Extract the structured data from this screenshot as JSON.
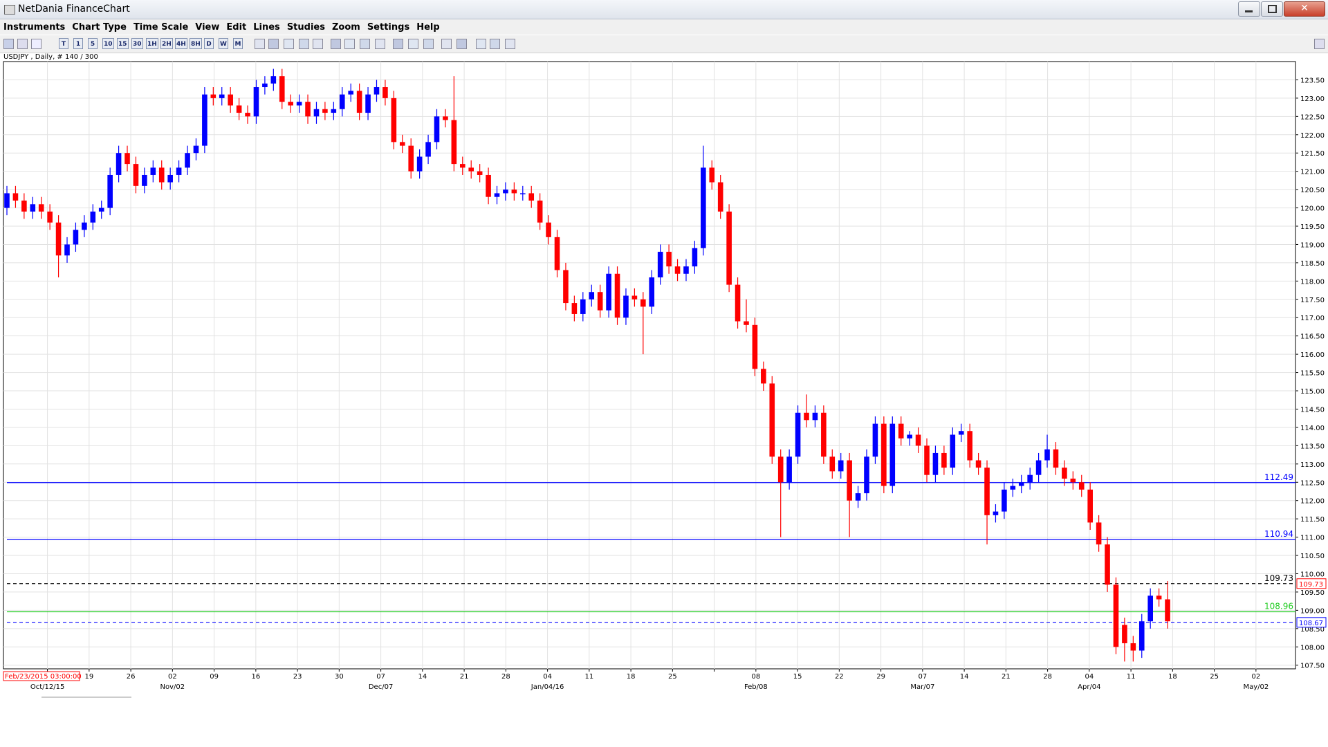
{
  "window": {
    "title": "NetDania FinanceChart"
  },
  "menu": [
    "Instruments",
    "Chart Type",
    "Time Scale",
    "View",
    "Edit",
    "Lines",
    "Studies",
    "Zoom",
    "Settings",
    "Help"
  ],
  "toolbar": [
    "T",
    "1",
    "5",
    "10",
    "15",
    "30",
    "1H",
    "2H",
    "4H",
    "8H",
    "D",
    "W",
    "M"
  ],
  "chart_data": {
    "type": "candlestick",
    "title": "USDJPY , Daily, # 140 / 300",
    "cursor_label": "Feb/23/2015 03:00:00",
    "categories": [
      null,
      "19",
      "26",
      "02",
      "09",
      "16",
      "23",
      "30",
      "07",
      "14",
      "21",
      "28",
      "04",
      "11",
      "18",
      "25",
      null,
      "08",
      "15",
      "22",
      "29",
      "07",
      "14",
      "21",
      "28",
      "04",
      "11",
      "18",
      "25",
      "02"
    ],
    "category_dates": [
      "Oct/12/15",
      null,
      null,
      "Nov/02",
      null,
      null,
      null,
      null,
      "Dec/07",
      null,
      null,
      null,
      "Jan/04/16",
      null,
      null,
      null,
      null,
      "Feb/08",
      null,
      null,
      null,
      "Mar/07",
      null,
      null,
      null,
      "Apr/04",
      null,
      null,
      null,
      "May/02"
    ],
    "up_color": "#0000ff",
    "down_color": "#ff0000",
    "grid": true,
    "open": [
      120.0,
      120.4,
      120.2,
      119.9,
      120.1,
      119.9,
      119.6,
      118.7,
      119.0,
      119.4,
      119.6,
      119.9,
      120.0,
      120.9,
      121.5,
      121.2,
      120.6,
      120.9,
      121.1,
      120.7,
      120.9,
      121.1,
      121.5,
      121.7,
      123.1,
      123.0,
      123.1,
      122.8,
      122.6,
      122.5,
      123.3,
      123.4,
      123.6,
      122.9,
      122.8,
      122.9,
      122.5,
      122.7,
      122.6,
      122.7,
      123.1,
      123.2,
      122.6,
      123.1,
      123.3,
      123.0,
      121.8,
      121.7,
      121.0,
      121.4,
      121.8,
      122.5,
      122.4,
      121.2,
      121.1,
      121.0,
      120.9,
      120.3,
      120.4,
      120.5,
      120.4,
      120.4,
      120.2,
      119.6,
      119.2,
      118.3,
      117.4,
      117.1,
      117.5,
      117.7,
      117.2,
      118.2,
      117.0,
      117.6,
      117.5,
      117.3,
      118.1,
      118.8,
      118.4,
      118.2,
      118.4,
      118.9,
      121.1,
      120.7,
      119.9,
      117.9,
      116.9,
      116.8,
      115.6,
      115.2,
      113.2,
      112.5,
      113.2,
      114.4,
      114.2,
      114.4,
      113.2,
      112.8,
      113.1,
      112.0,
      112.2,
      113.2,
      114.1,
      112.4,
      114.1,
      113.7,
      113.8,
      113.5,
      112.7,
      113.3,
      112.9,
      113.8,
      113.9,
      113.1,
      112.9,
      111.6,
      111.7,
      112.3,
      112.4,
      112.5,
      112.7,
      113.1,
      113.4,
      112.9,
      112.6,
      112.5,
      112.3,
      111.4,
      110.8,
      109.7,
      108.6,
      108.1,
      107.9,
      108.7,
      109.4,
      109.3
    ],
    "high": [
      120.6,
      120.6,
      120.4,
      120.3,
      120.3,
      120.1,
      119.8,
      119.2,
      119.6,
      119.8,
      120.1,
      120.2,
      121.1,
      121.7,
      121.7,
      121.4,
      121.1,
      121.3,
      121.3,
      121.1,
      121.3,
      121.7,
      121.9,
      123.3,
      123.3,
      123.3,
      123.3,
      123.0,
      122.8,
      123.5,
      123.6,
      123.8,
      123.8,
      123.1,
      123.1,
      123.1,
      122.9,
      122.9,
      122.9,
      123.3,
      123.4,
      123.4,
      123.3,
      123.5,
      123.5,
      123.2,
      122.0,
      121.9,
      121.6,
      122.0,
      122.7,
      122.7,
      123.6,
      121.4,
      121.3,
      121.2,
      121.1,
      120.6,
      120.7,
      120.7,
      120.6,
      120.6,
      120.4,
      119.8,
      119.4,
      118.5,
      117.6,
      117.7,
      117.9,
      117.9,
      118.4,
      118.4,
      117.8,
      117.8,
      117.7,
      118.3,
      119.0,
      119.0,
      118.6,
      118.6,
      119.1,
      121.7,
      121.3,
      120.9,
      120.1,
      118.1,
      117.5,
      117.0,
      115.8,
      115.4,
      113.4,
      113.4,
      114.6,
      114.9,
      114.6,
      114.6,
      113.4,
      113.3,
      113.3,
      112.4,
      113.4,
      114.3,
      114.3,
      114.3,
      114.3,
      113.9,
      114.0,
      113.7,
      113.5,
      113.5,
      114.0,
      114.1,
      114.1,
      113.3,
      113.1,
      111.9,
      112.5,
      112.6,
      112.7,
      112.9,
      113.3,
      113.8,
      113.6,
      113.1,
      112.8,
      112.7,
      112.5,
      111.6,
      111.0,
      109.9,
      108.8,
      108.3,
      108.9,
      109.6,
      109.6,
      109.8
    ],
    "low": [
      119.8,
      120.0,
      119.7,
      119.7,
      119.7,
      119.4,
      118.1,
      118.5,
      118.8,
      119.2,
      119.4,
      119.7,
      119.8,
      120.7,
      121.0,
      120.4,
      120.4,
      120.7,
      120.5,
      120.5,
      120.7,
      120.9,
      121.3,
      121.5,
      122.8,
      122.8,
      122.6,
      122.4,
      122.3,
      122.3,
      123.1,
      123.2,
      122.7,
      122.6,
      122.6,
      122.3,
      122.3,
      122.4,
      122.4,
      122.5,
      122.9,
      122.4,
      122.4,
      122.9,
      122.8,
      121.6,
      121.5,
      120.8,
      120.8,
      121.2,
      121.6,
      122.2,
      121.0,
      120.9,
      120.8,
      120.7,
      120.1,
      120.1,
      120.2,
      120.2,
      120.2,
      120.0,
      119.4,
      119.0,
      118.1,
      117.2,
      116.9,
      116.9,
      117.3,
      117.0,
      117.0,
      116.8,
      116.8,
      117.3,
      116.0,
      117.1,
      117.9,
      118.2,
      118.0,
      118.0,
      118.2,
      118.7,
      120.5,
      119.7,
      117.7,
      116.7,
      116.6,
      115.4,
      115.0,
      113.0,
      111.0,
      112.3,
      113.0,
      114.0,
      114.0,
      113.0,
      112.6,
      112.6,
      111.0,
      111.8,
      112.0,
      113.0,
      112.2,
      112.2,
      113.5,
      113.5,
      113.3,
      112.5,
      112.5,
      112.7,
      112.7,
      113.6,
      112.9,
      112.7,
      110.8,
      111.4,
      111.5,
      112.1,
      112.2,
      112.3,
      112.5,
      112.9,
      112.7,
      112.4,
      112.3,
      112.1,
      111.2,
      110.6,
      109.5,
      107.8,
      107.6,
      107.6,
      107.7,
      108.5,
      109.1,
      108.5
    ],
    "close": [
      120.4,
      120.2,
      119.9,
      120.1,
      119.9,
      119.6,
      118.7,
      119.0,
      119.4,
      119.6,
      119.9,
      120.0,
      120.9,
      121.5,
      121.2,
      120.6,
      120.9,
      121.1,
      120.7,
      120.9,
      121.1,
      121.5,
      121.7,
      123.1,
      123.0,
      123.1,
      122.8,
      122.6,
      122.5,
      123.3,
      123.4,
      123.6,
      122.9,
      122.8,
      122.9,
      122.5,
      122.7,
      122.6,
      122.7,
      123.1,
      123.2,
      122.6,
      123.1,
      123.3,
      123.0,
      121.8,
      121.7,
      121.0,
      121.4,
      121.8,
      122.5,
      122.4,
      121.2,
      121.1,
      121.0,
      120.9,
      120.3,
      120.4,
      120.5,
      120.4,
      120.4,
      120.2,
      119.6,
      119.2,
      118.3,
      117.4,
      117.1,
      117.5,
      117.7,
      117.2,
      118.2,
      117.0,
      117.6,
      117.5,
      117.3,
      118.1,
      118.8,
      118.4,
      118.2,
      118.4,
      118.9,
      121.1,
      120.7,
      119.9,
      117.9,
      116.9,
      116.8,
      115.6,
      115.2,
      113.2,
      112.5,
      113.2,
      114.4,
      114.2,
      114.4,
      113.2,
      112.8,
      113.1,
      112.0,
      112.2,
      113.2,
      114.1,
      112.4,
      114.1,
      113.7,
      113.8,
      113.5,
      112.7,
      113.3,
      112.9,
      113.8,
      113.9,
      113.1,
      112.9,
      111.6,
      111.7,
      112.3,
      112.4,
      112.5,
      112.7,
      113.1,
      113.4,
      112.9,
      112.6,
      112.5,
      112.3,
      111.4,
      110.8,
      109.7,
      108.0,
      108.1,
      107.9,
      108.7,
      109.4,
      109.3,
      108.7
    ],
    "ylim": [
      107.4,
      124.0
    ],
    "yticks": [
      {
        "value": 107.5,
        "label": "107.50"
      },
      {
        "value": 108,
        "label": "108.00"
      },
      {
        "value": 108.5,
        "label": "108.50"
      },
      {
        "value": 109,
        "label": "109.00"
      },
      {
        "value": 109.5,
        "label": "109.50"
      },
      {
        "value": 110,
        "label": "110.00"
      },
      {
        "value": 110.5,
        "label": "110.50"
      },
      {
        "value": 111,
        "label": "111.00"
      },
      {
        "value": 111.5,
        "label": "111.50"
      },
      {
        "value": 112,
        "label": "112.00"
      },
      {
        "value": 112.5,
        "label": "112.50"
      },
      {
        "value": 113,
        "label": "113.00"
      },
      {
        "value": 113.5,
        "label": "113.50"
      },
      {
        "value": 114,
        "label": "114.00"
      },
      {
        "value": 114.5,
        "label": "114.50"
      },
      {
        "value": 115,
        "label": "115.00"
      },
      {
        "value": 115.5,
        "label": "115.50"
      },
      {
        "value": 116,
        "label": "116.00"
      },
      {
        "value": 116.5,
        "label": "116.50"
      },
      {
        "value": 117,
        "label": "117.00"
      },
      {
        "value": 117.5,
        "label": "117.50"
      },
      {
        "value": 118,
        "label": "118.00"
      },
      {
        "value": 118.5,
        "label": "118.50"
      },
      {
        "value": 119,
        "label": "119.00"
      },
      {
        "value": 119.5,
        "label": "119.50"
      },
      {
        "value": 120,
        "label": "120.00"
      },
      {
        "value": 120.5,
        "label": "120.50"
      },
      {
        "value": 121,
        "label": "121.00"
      },
      {
        "value": 121.5,
        "label": "121.50"
      },
      {
        "value": 122,
        "label": "122.00"
      },
      {
        "value": 122.5,
        "label": "122.50"
      },
      {
        "value": 123,
        "label": "123.00"
      },
      {
        "value": 123.5,
        "label": "123.50"
      }
    ],
    "levels": [
      {
        "value": 112.49,
        "color": "#0000ff",
        "style": "solid",
        "labeled": true
      },
      {
        "value": 110.94,
        "color": "#0000ff",
        "style": "solid",
        "labeled": true
      },
      {
        "value": 109.73,
        "color": "#000000",
        "style": "dashed",
        "labeled": true
      },
      {
        "value": 108.96,
        "color": "#22cc22",
        "style": "solid",
        "labeled": true
      },
      {
        "value": 108.67,
        "color": "#0000ff",
        "style": "dashed",
        "labeled": false
      }
    ],
    "price_boxes": [
      {
        "value": 109.73,
        "color": "#ff0000"
      },
      {
        "value": 108.67,
        "color": "#0000ff"
      }
    ]
  }
}
